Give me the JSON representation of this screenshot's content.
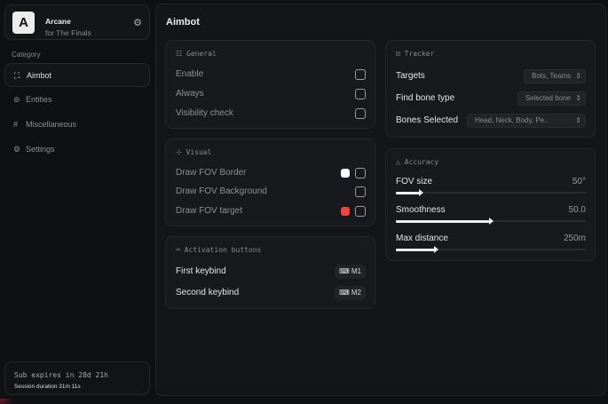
{
  "app": {
    "name": "Arcane",
    "subtitle": "for The Finals",
    "logo_letter": "A"
  },
  "sidebar": {
    "category_label": "Category",
    "items": [
      {
        "label": "Aimbot",
        "icon": "crosshair-icon",
        "active": true
      },
      {
        "label": "Entities",
        "icon": "scan-icon"
      },
      {
        "label": "Miscellaneous",
        "icon": "grid-icon"
      },
      {
        "label": "Settings",
        "icon": "gear-icon"
      }
    ],
    "sub_expires": "Sub expires in 28d 21h",
    "session": "Session duration 31m 11s"
  },
  "main": {
    "title": "Aimbot"
  },
  "general": {
    "title": "General",
    "items": [
      {
        "label": "Enable",
        "checked": false
      },
      {
        "label": "Always",
        "checked": false
      },
      {
        "label": "Visibility check",
        "checked": false
      }
    ]
  },
  "visual": {
    "title": "Visual",
    "items": [
      {
        "label": "Draw FOV Border",
        "color": "#ffffff",
        "checked": false
      },
      {
        "label": "Draw FOV Background",
        "checked": false
      },
      {
        "label": "Draw FOV target",
        "color": "#ef4444",
        "checked": false
      }
    ]
  },
  "activation": {
    "title": "Activation buttons",
    "items": [
      {
        "label": "First keybind",
        "key": "M1"
      },
      {
        "label": "Second keybind",
        "key": "M2"
      }
    ]
  },
  "tracker": {
    "title": "Tracker",
    "items": [
      {
        "label": "Targets",
        "value": "Bots, Teams"
      },
      {
        "label": "Find bone type",
        "value": "Selected bone"
      },
      {
        "label": "Bones Selected",
        "value": "Head, Neck, Body, Pe.."
      }
    ]
  },
  "accuracy": {
    "title": "Accuracy",
    "sliders": [
      {
        "label": "FOV size",
        "value": "50°",
        "percent": 13
      },
      {
        "label": "Smoothness",
        "value": "50.0",
        "percent": 50
      },
      {
        "label": "Max distance",
        "value": "250m",
        "percent": 21
      }
    ]
  },
  "colors": {
    "accent": "#c0213f",
    "background": "#0f1012"
  }
}
